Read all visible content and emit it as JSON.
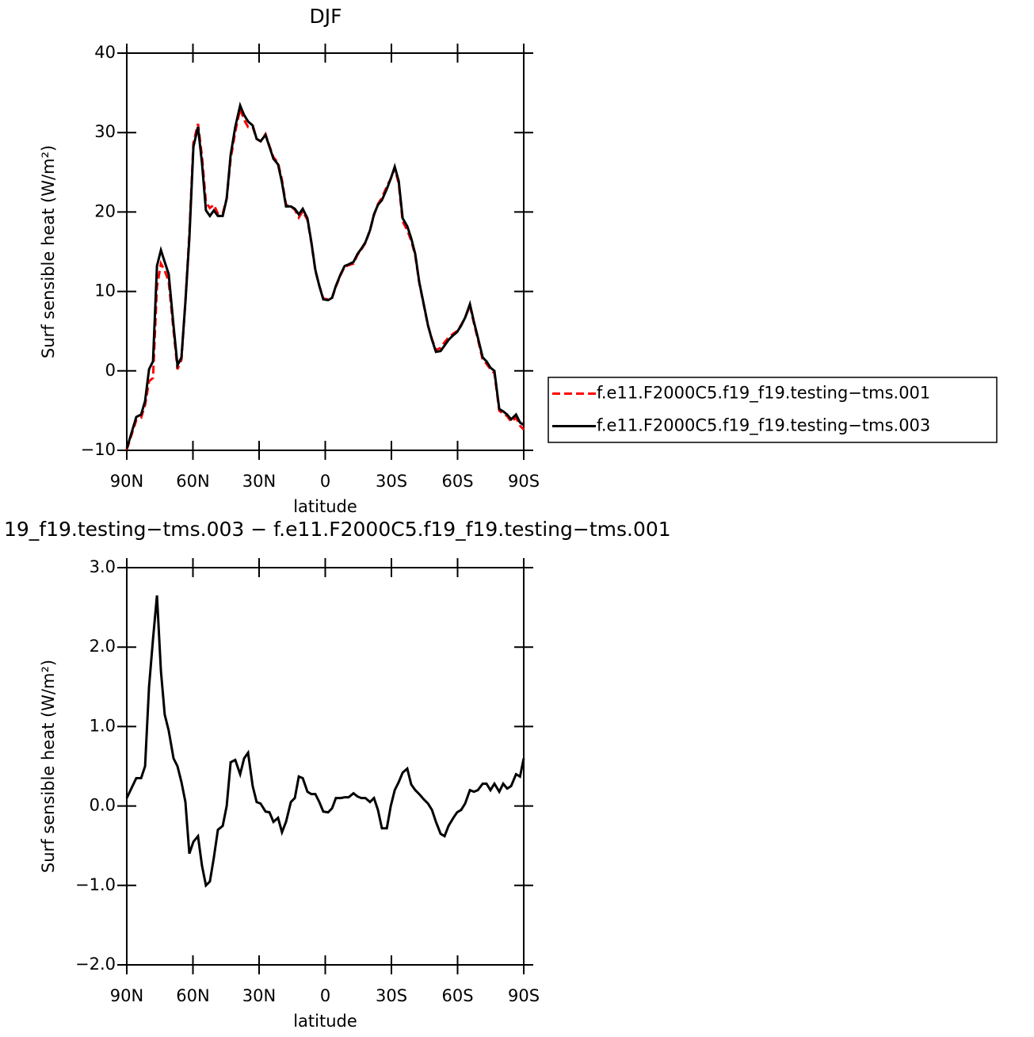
{
  "chart_data": [
    {
      "type": "line",
      "title": "DJF",
      "xlabel": "latitude",
      "ylabel": "Surf sensible heat (W/m²)",
      "xlim": [
        90,
        -90
      ],
      "xticks": [
        {
          "value": 90,
          "label": "90N"
        },
        {
          "value": 60,
          "label": "60N"
        },
        {
          "value": 30,
          "label": "30N"
        },
        0,
        {
          "value": -30,
          "label": "30S"
        },
        {
          "value": -60,
          "label": "60S"
        },
        {
          "value": -90,
          "label": "90S"
        }
      ],
      "ylim": [
        -10,
        40
      ],
      "yticks": [
        {
          "value": -10,
          "label": "−10"
        },
        0,
        10,
        20,
        30,
        40
      ],
      "legend": "right",
      "x": [
        90,
        85.7,
        83.5,
        81.7,
        79.9,
        78.1,
        76.3,
        74.5,
        72.8,
        71,
        68.8,
        67,
        65.2,
        63.4,
        61.6,
        59.8,
        57.7,
        55.9,
        54.1,
        52.3,
        50.5,
        48.7,
        46.5,
        44.7,
        42.9,
        40.8,
        38.6,
        36.8,
        35,
        32.9,
        31.1,
        29.3,
        27.1,
        25.3,
        23.5,
        21.4,
        19.6,
        17.8,
        15.6,
        13.8,
        12,
        10.2,
        8.1,
        6.3,
        4.5,
        2.7,
        0.9,
        -1.3,
        -3.1,
        -4.8,
        -7,
        -8.8,
        -10.6,
        -12.8,
        -14.6,
        -16.4,
        -18.2,
        -20.3,
        -22.1,
        -23.9,
        -25.7,
        -27.9,
        -29.7,
        -31.5,
        -33.3,
        -35.1,
        -37.2,
        -39,
        -40.8,
        -42.6,
        -44.8,
        -46.6,
        -48.4,
        -50.2,
        -52.3,
        -54.1,
        -55.9,
        -58.1,
        -59.8,
        -61.6,
        -63.4,
        -65.6,
        -67.4,
        -69.2,
        -71.4,
        -73.1,
        -74.9,
        -76.7,
        -78.9,
        -80.7,
        -82.5,
        -84.3,
        -86.5,
        -88.3,
        -90
      ],
      "series": [
        {
          "name": "f.e11.F2000C5.f19_f19.testing−tms.001",
          "color": "#ff0000",
          "dash": true,
          "values": [
            -9.9,
            -6.2,
            -5.9,
            -4.3,
            -1.3,
            -0.9,
            10.6,
            13.5,
            12.6,
            11.3,
            5.1,
            0.2,
            1.4,
            8.7,
            17.3,
            28.7,
            31.1,
            27,
            21.2,
            20.5,
            20.9,
            19.8,
            19.8,
            21.7,
            26.7,
            30.1,
            33,
            31.6,
            30.7,
            30.7,
            29.2,
            28.9,
            29.8,
            28.3,
            26.9,
            26.2,
            24,
            20.9,
            20.7,
            20.3,
            19.3,
            20.1,
            19,
            16.1,
            12.6,
            10.7,
            9.1,
            9,
            9.2,
            10.6,
            12.1,
            13.1,
            13.3,
            13.5,
            14.6,
            15.3,
            16.1,
            17.7,
            19.6,
            21,
            21.8,
            23.2,
            24.2,
            25.5,
            23.6,
            18.8,
            17.7,
            16.4,
            14.5,
            11.1,
            8.1,
            5.7,
            4,
            2.6,
            2.9,
            3.6,
            4.2,
            4.7,
            5,
            5.8,
            6.7,
            8.2,
            6,
            4,
            1.4,
            0.9,
            0.2,
            -0.3,
            -5,
            -5.4,
            -5.7,
            -6.4,
            -5.9,
            -6.9,
            -7.4
          ]
        },
        {
          "name": "f.e11.F2000C5.f19_f19.testing−tms.003",
          "color": "#000000",
          "dash": false,
          "values": [
            -9.8,
            -5.8,
            -5.5,
            -3.8,
            0.2,
            1.2,
            13.2,
            15.2,
            13.7,
            12.2,
            5.7,
            0.7,
            1.7,
            8.7,
            16.7,
            28.2,
            30.7,
            26.2,
            20.2,
            19.5,
            20.2,
            19.5,
            19.5,
            21.7,
            27.2,
            30.7,
            33.4,
            32.2,
            31.4,
            30.9,
            29.2,
            28.9,
            29.7,
            28.2,
            26.7,
            26,
            23.7,
            20.7,
            20.7,
            20.4,
            19.7,
            20.4,
            19.2,
            16.2,
            12.7,
            10.7,
            9,
            8.9,
            9.2,
            10.7,
            12.2,
            13.2,
            13.4,
            13.7,
            14.7,
            15.4,
            16.2,
            17.7,
            19.7,
            20.9,
            21.5,
            22.9,
            24.2,
            25.7,
            23.9,
            19.2,
            18.2,
            16.7,
            14.7,
            11.2,
            8.2,
            5.7,
            3.9,
            2.4,
            2.5,
            3.2,
            3.9,
            4.5,
            4.9,
            5.7,
            6.7,
            8.4,
            6.2,
            4.2,
            1.7,
            1.2,
            0.4,
            0,
            -4.8,
            -5.1,
            -5.5,
            -6.1,
            -5.5,
            -6.5,
            -6.8
          ]
        }
      ]
    },
    {
      "type": "line",
      "title": "19_f19.testing−tms.003 − f.e11.F2000C5.f19_f19.testing−tms.001",
      "xlabel": "latitude",
      "ylabel": "Surf sensible heat (W/m²)",
      "xlim": [
        90,
        -90
      ],
      "xticks": [
        {
          "value": 90,
          "label": "90N"
        },
        {
          "value": 60,
          "label": "60N"
        },
        {
          "value": 30,
          "label": "30N"
        },
        0,
        {
          "value": -30,
          "label": "30S"
        },
        {
          "value": -60,
          "label": "60S"
        },
        {
          "value": -90,
          "label": "90S"
        }
      ],
      "ylim": [
        -2,
        3
      ],
      "yticks": [
        {
          "value": -2,
          "label": "−2.0"
        },
        {
          "value": -1,
          "label": "−1.0"
        },
        {
          "value": 0,
          "label": "0.0"
        },
        {
          "value": 1,
          "label": "1.0"
        },
        {
          "value": 2,
          "label": "2.0"
        },
        {
          "value": 3,
          "label": "3.0"
        }
      ],
      "x": [
        90,
        85.7,
        83.5,
        81.7,
        79.9,
        78.1,
        76.3,
        74.5,
        72.8,
        71,
        68.8,
        67,
        65.2,
        63.4,
        61.6,
        59.8,
        57.7,
        55.9,
        54.1,
        52.3,
        50.5,
        48.7,
        46.5,
        44.7,
        42.9,
        40.8,
        38.6,
        36.8,
        35,
        32.9,
        31.1,
        29.3,
        27.1,
        25.3,
        23.5,
        21.4,
        19.6,
        17.8,
        15.6,
        13.8,
        12,
        10.2,
        8.1,
        6.3,
        4.5,
        2.7,
        0.9,
        -1.3,
        -3.1,
        -4.8,
        -7,
        -8.8,
        -10.6,
        -12.8,
        -14.6,
        -16.4,
        -18.2,
        -20.3,
        -22.1,
        -23.9,
        -25.7,
        -27.9,
        -29.7,
        -31.5,
        -33.3,
        -35.1,
        -37.2,
        -39,
        -40.8,
        -42.6,
        -44.8,
        -46.6,
        -48.4,
        -50.2,
        -52.3,
        -54.1,
        -55.9,
        -58.1,
        -59.8,
        -61.6,
        -63.4,
        -65.6,
        -67.4,
        -69.2,
        -71.4,
        -73.1,
        -74.9,
        -76.7,
        -78.9,
        -80.7,
        -82.5,
        -84.3,
        -86.5,
        -88.3,
        -90
      ],
      "series": [
        {
          "color": "#000000",
          "dash": false,
          "values": [
            0.1,
            0.35,
            0.35,
            0.5,
            1.5,
            2.1,
            2.65,
            1.7,
            1.15,
            0.95,
            0.6,
            0.5,
            0.3,
            0.05,
            -0.6,
            -0.45,
            -0.38,
            -0.75,
            -1,
            -0.95,
            -0.65,
            -0.3,
            -0.25,
            0,
            0.55,
            0.58,
            0.4,
            0.6,
            0.67,
            0.25,
            0.05,
            0.03,
            -0.07,
            -0.08,
            -0.2,
            -0.15,
            -0.33,
            -0.2,
            0.05,
            0.1,
            0.37,
            0.35,
            0.18,
            0.15,
            0.15,
            0.05,
            -0.07,
            -0.08,
            -0.03,
            0.1,
            0.1,
            0.11,
            0.11,
            0.16,
            0.12,
            0.1,
            0.1,
            0.05,
            0.1,
            -0.05,
            -0.28,
            -0.28,
            0,
            0.2,
            0.3,
            0.42,
            0.47,
            0.27,
            0.2,
            0.15,
            0.08,
            0.03,
            -0.05,
            -0.2,
            -0.35,
            -0.38,
            -0.25,
            -0.15,
            -0.08,
            -0.05,
            0.03,
            0.2,
            0.18,
            0.2,
            0.28,
            0.28,
            0.2,
            0.28,
            0.18,
            0.28,
            0.22,
            0.25,
            0.4,
            0.37,
            0.6
          ]
        }
      ]
    }
  ]
}
